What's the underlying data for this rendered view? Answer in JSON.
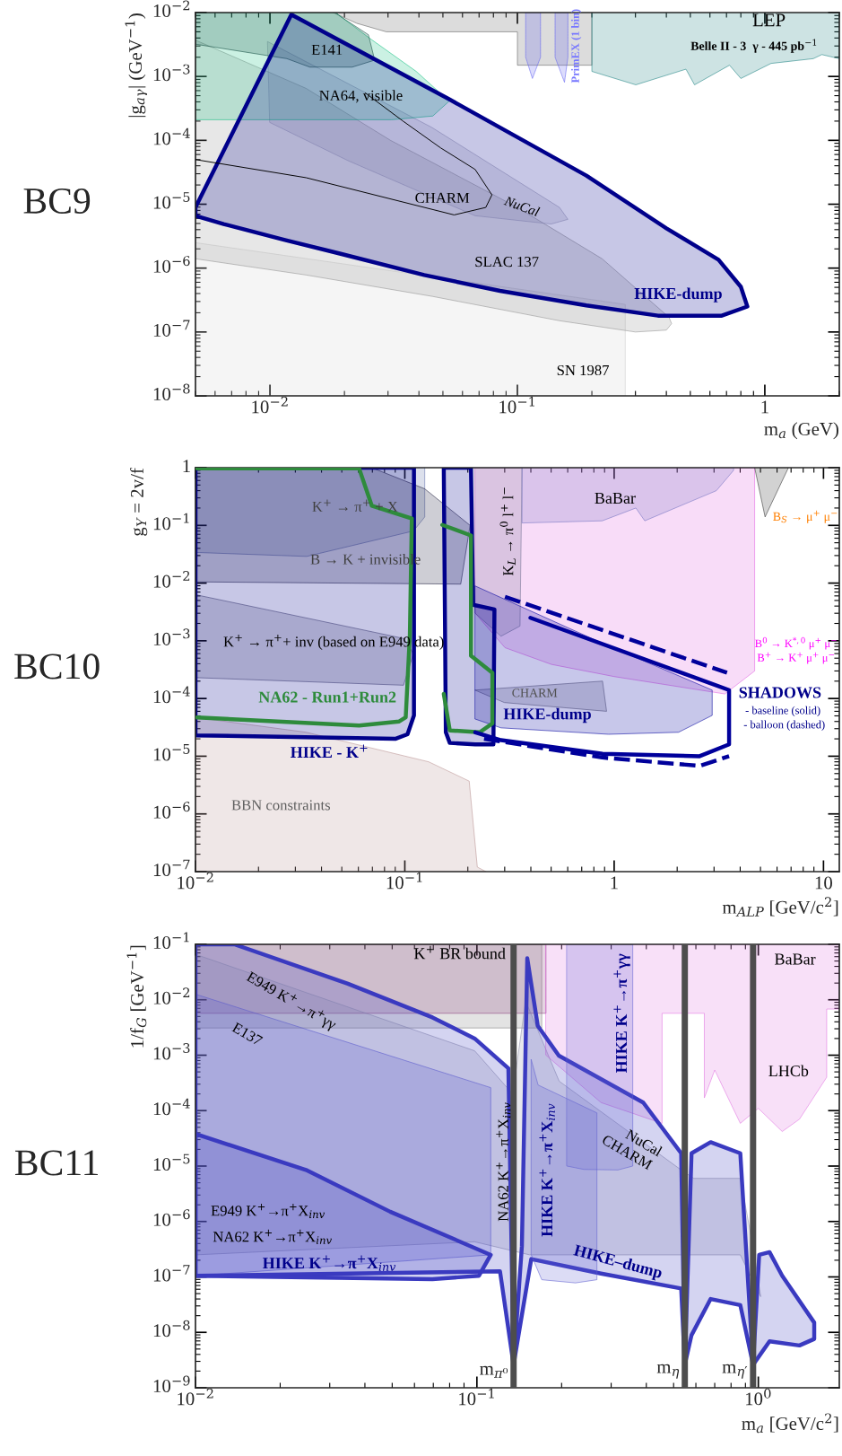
{
  "chart_data": [
    {
      "type": "area",
      "title": "BC9",
      "xlabel": "m$_{a}$ (GeV)",
      "ylabel": "|g$_{aγ}$| (GeV$^{−1}$)",
      "log": "xy",
      "xlim": [
        0.005,
        2.0
      ],
      "ylim": [
        1e-08,
        0.01
      ],
      "xticks": [
        {
          "value": 0.01,
          "label": "10$^{−2}$"
        },
        {
          "value": 0.1,
          "label": "10$^{−1}$"
        },
        1
      ],
      "yticks": [
        {
          "value": 1e-08,
          "label": "10$^{−8}$"
        },
        {
          "value": 1e-07,
          "label": "10$^{−7}$"
        },
        {
          "value": 1e-06,
          "label": "10$^{−6}$"
        },
        {
          "value": 1e-05,
          "label": "10$^{−5}$"
        },
        {
          "value": 0.0001,
          "label": "10$^{−4}$"
        },
        {
          "value": 0.001,
          "label": "10$^{−3}$"
        },
        {
          "value": 0.01,
          "label": "10$^{−2}$"
        }
      ],
      "series": [
        {
          "color": "#d0d0d0",
          "x": [
            0.005,
            0.273,
            0.273,
            0.005
          ],
          "values": [
            2.5e-06,
            2.7e-07,
            1e-08,
            1e-08
          ]
        },
        {
          "color": "#909090",
          "x": [
            0.005,
            0.014,
            0.0307,
            0.1,
            0.22,
            0.41,
            0.42,
            0.4,
            0.3,
            0.148,
            0.0455,
            0.014,
            0.005
          ],
          "values": [
            0.0037,
            0.00065,
            0.0001,
            8.9e-06,
            1.4e-06,
            1.7e-07,
            1.35e-07,
            1.07e-07,
            1e-07,
            1.5e-07,
            3.6e-07,
            7.8e-07,
            1.4e-06
          ]
        },
        {
          "color": "#a0a0b4",
          "x": [
            0.0098,
            0.045,
            0.148,
            0.16,
            0.137,
            0.0675,
            0.0207,
            0.01
          ],
          "values": [
            0.0035,
            0.00016,
            8.9e-06,
            5.8e-06,
            4.9e-06,
            6.6e-06,
            4.8e-05,
            0.00019
          ]
        },
        {
          "color": "#606060",
          "x": [
            0.018,
            0.0224,
            0.0295,
            0.1,
            0.1,
            0.2,
            0.2
          ],
          "values": [
            0.01,
            0.0068,
            0.005,
            0.005,
            0.0015,
            0.0015,
            0.01
          ]
        },
        {
          "color": "#1a8080",
          "x": [
            0.2,
            0.2,
            0.301,
            0.48,
            0.52,
            0.72,
            0.8,
            1.06,
            1.57,
            1.7,
            2.0,
            2.0
          ],
          "values": [
            0.01,
            0.0012,
            0.00074,
            0.0013,
            0.00074,
            0.0015,
            0.00093,
            0.0016,
            0.0019,
            0.0022,
            0.0019,
            0.01
          ]
        },
        {
          "color": "#6060f0",
          "line_style": "dashed",
          "x": [
            0.108,
            0.108,
            0.115,
            0.124,
            0.124
          ],
          "values": [
            0.01,
            0.002,
            0.00093,
            0.002,
            0.01
          ]
        },
        {
          "color": "#6060f0",
          "line_style": "dashed",
          "x": [
            0.142,
            0.142,
            0.155,
            0.16,
            0.16
          ],
          "values": [
            0.01,
            0.002,
            0.00081,
            0.002,
            0.01
          ]
        },
        {
          "color": "#10c080",
          "x": [
            0.005,
            0.0184,
            0.0252,
            0.039,
            0.053,
            0.0455,
            0.031,
            0.005
          ],
          "values": [
            0.01,
            0.01,
            0.004,
            0.0012,
            0.00041,
            0.00024,
            0.00021,
            0.00021
          ]
        },
        {
          "color": "#104a40",
          "x": [
            0.005,
            0.005,
            0.0117,
            0.0145,
            0.0215,
            0.0265,
            0.025,
            0.019,
            0.0185
          ],
          "values": [
            0.01,
            0.0032,
            0.0019,
            0.0014,
            0.0014,
            0.0018,
            0.0045,
            0.009,
            0.01
          ]
        },
        {
          "type": "line",
          "color": "#000000",
          "x": [
            0.005,
            0.014,
            0.0555,
            0.0745,
            0.0789,
            0.0675,
            0.049,
            0.0345,
            0.0243
          ],
          "values": [
            5e-05,
            2.6e-05,
            6.8e-06,
            8.9e-06,
            1.4e-05,
            3.5e-05,
            7.6e-05,
            0.0002,
            0.00055
          ]
        },
        {
          "color": "#00008b",
          "x": [
            0.005,
            0.0122,
            0.053,
            0.19,
            0.4,
            0.65,
            0.8,
            0.85,
            0.67,
            0.37,
            0.19,
            0.085,
            0.042,
            0.019,
            0.0115,
            0.0065,
            0.005
          ],
          "values": [
            8.9e-06,
            0.0093,
            0.00044,
            2.8e-05,
            4.2e-06,
            1.35e-06,
            5.1e-07,
            2.5e-07,
            1.8e-07,
            1.8e-07,
            2.6e-07,
            4.4e-07,
            7.8e-07,
            1.7e-06,
            2.75e-06,
            4.9e-06,
            6.6e-06
          ]
        }
      ],
      "annotations": [
        "LEP",
        "Belle II - 3  γ - 445 pb$^{−1}$",
        "PrimEX (1 bin)",
        "E141",
        "NA64, visible",
        "CHARM",
        "NuCal",
        "SLAC 137",
        "HIKE-dump",
        "SN 1987"
      ]
    },
    {
      "type": "area",
      "title": "BC10",
      "xlabel": "m$_{ALP}$ [GeV/c$^{2}$]",
      "ylabel": "g$_{Y}$ = 2v/f",
      "log": "xy",
      "xlim": [
        0.01,
        11.9
      ],
      "ylim": [
        1e-07,
        1
      ],
      "xticks": [
        {
          "value": 0.01,
          "label": "10$^{−2}$"
        },
        {
          "value": 0.1,
          "label": "10$^{−1}$"
        },
        1,
        10
      ],
      "yticks": [
        {
          "value": 1e-07,
          "label": "10$^{−7}$"
        },
        {
          "value": 1e-06,
          "label": "10$^{−6}$"
        },
        {
          "value": 1e-05,
          "label": "10$^{−5}$"
        },
        {
          "value": 0.0001,
          "label": "10$^{−4}$"
        },
        {
          "value": 0.001,
          "label": "10$^{−3}$"
        },
        {
          "value": 0.01,
          "label": "10$^{−2}$"
        },
        {
          "value": 0.1,
          "label": "10$^{−1}$"
        },
        1
      ],
      "series": [
        {
          "color": "#b89090",
          "x": [
            0.01,
            0.01,
            0.0338,
            0.13,
            0.203,
            0.222,
            0.244
          ],
          "values": [
            1e-07,
            4.7e-05,
            2.6e-05,
            8e-06,
            3.7e-06,
            1.2e-07,
            1e-07
          ]
        },
        {
          "color": "#6070a8",
          "x": [
            0.01,
            0.01,
            0.034,
            0.11,
            0.1245,
            0.1245
          ],
          "values": [
            1,
            0.034,
            0.029,
            0.08,
            0.14,
            1
          ]
        },
        {
          "color": "#202040",
          "x": [
            0.01,
            0.01,
            0.185,
            0.205,
            0.1245,
            0.0695
          ],
          "values": [
            1,
            0.0105,
            0.0096,
            0.1,
            0.43,
            1
          ]
        },
        {
          "color": "#505070",
          "x": [
            0.01,
            0.0986,
            0.11,
            0.0986,
            0.01
          ],
          "values": [
            0.0063,
            0.0011,
            0.0006,
            0.00017,
            0.00023
          ]
        },
        {
          "color": "#e060e0",
          "x": [
            0.217,
            4.69,
            4.69,
            3.38,
            1.0,
            0.502,
            0.301,
            0.217
          ],
          "values": [
            1,
            1,
            0.0003,
            0.00012,
            0.00024,
            0.00039,
            0.00076,
            0.003
          ]
        },
        {
          "color": "#707090",
          "x": [
            0.207,
            0.363,
            0.355,
            0.288,
            0.217
          ],
          "values": [
            1,
            1,
            0.0018,
            0.0012,
            0.003
          ]
        },
        {
          "color": "#7070c0",
          "x": [
            0.363,
            0.363,
            0.877,
            1.27,
            1.4,
            3.08,
            3.72,
            3.72
          ],
          "values": [
            1,
            0.11,
            0.12,
            0.2,
            0.12,
            0.4,
            0.9,
            1
          ]
        },
        {
          "color": "#303030",
          "x": [
            4.69,
            5.26,
            6.8
          ],
          "values": [
            1,
            0.14,
            1
          ]
        },
        {
          "color": "#606070",
          "x": [
            0.217,
            0.88,
            0.92,
            0.3
          ],
          "values": [
            0.00014,
            0.0002,
            6e-05,
            8.5e-05
          ]
        },
        {
          "color": "#0000a0",
          "x": [
            0.217,
            0.877,
            2.94,
            2.94,
            2.03,
            0.94,
            0.288,
            0.217
          ],
          "values": [
            0.0089,
            0.00091,
            0.00014,
            5.1e-05,
            2.6e-05,
            2.4e-05,
            3.1e-05,
            4.4e-05
          ]
        },
        {
          "color": "#00008b",
          "x": [
            0.01,
            0.1106,
            0.1106,
            0.103,
            0.09,
            0.01
          ],
          "values": [
            1,
            1,
            5.1e-05,
            2.4e-05,
            2e-05,
            2.3e-05
          ]
        },
        {
          "color": "#00008b",
          "x": [
            0.1535,
            0.207,
            0.212,
            0.268,
            0.265,
            0.217,
            0.164,
            0.157
          ],
          "values": [
            1,
            1,
            0.0042,
            0.0035,
            1.6e-05,
            1.6e-05,
            1.7e-05,
            2.6e-05
          ]
        },
        {
          "type": "line",
          "color": "#2e8b3c",
          "x": [
            0.0102,
            0.0605,
            0.0695,
            0.108,
            0.1057,
            0.101,
            0.094,
            0.0605,
            0.0102
          ],
          "values": [
            0.97,
            0.97,
            0.22,
            0.132,
            0.00126,
            4.7e-05,
            4e-05,
            3.4e-05,
            4.7e-05
          ]
        },
        {
          "type": "line",
          "color": "#2e8b3c",
          "x": [
            0.151,
            0.207,
            0.207,
            0.262,
            0.262,
            0.228,
            0.164,
            0.1535
          ],
          "values": [
            0.102,
            0.067,
            0.00055,
            0.00028,
            3.7e-05,
            2.6e-05,
            2.8e-05,
            0.00012
          ]
        },
        {
          "type": "line",
          "color": "#00009b",
          "x": [
            0.398,
            3.54,
            3.54,
            2.56,
            0.88,
            0.288,
            0.217
          ],
          "values": [
            0.0025,
            0.00014,
            1.6e-05,
            1e-05,
            1.1e-05,
            1.9e-05,
            2.6e-05
          ]
        },
        {
          "type": "line",
          "color": "#00009b",
          "line_style": "dashed",
          "x": [
            0.301,
            3.46
          ],
          "values": [
            0.0058,
            0.00028
          ]
        },
        {
          "type": "line",
          "color": "#00009b",
          "line_style": "dashed",
          "x": [
            0.239,
            0.877,
            2.56,
            3.54
          ],
          "values": [
            2e-05,
            9.5e-06,
            6.8e-06,
            1e-05
          ]
        }
      ],
      "annotations": [
        "K$^{+}$ → π$^{+}$ + X",
        "B → K + invisible",
        "K$^{+}$ → π$^{+}$+ inv (based on E949 data)",
        "NA62 - Run1+Run2",
        "HIKE - K$^{+}$",
        "BBN constraints",
        "BaBar",
        "K$_{L}$ → π$^{0}$ l$^{+}$ l$^{−}$",
        "B$_{S}$ → μ$^{+}$ μ$^{−}$",
        "B$^{0}$ → K$^{*,0}$ μ$^{+}$ μ$^{−}$",
        "B$^{+}$ → K$^{+}$ μ$^{+}$ μ$^{−}$",
        "CHARM",
        "HIKE-dump",
        "SHADOWS",
        "- baseline (solid)",
        "- balloon (dashed)"
      ]
    },
    {
      "type": "area",
      "title": "BC11",
      "xlabel": "m$_{a}$ [GeV/c$^{2}$]",
      "ylabel": "1/f$_{G}$ [GeV$^{−1}$]",
      "log": "xy",
      "xlim": [
        0.01,
        1.94
      ],
      "ylim": [
        1e-09,
        0.1
      ],
      "xticks": [
        {
          "value": 0.01,
          "label": "10$^{−2}$"
        },
        {
          "value": 0.1,
          "label": "10$^{−1}$"
        },
        {
          "value": 1,
          "label": "10$^{0}$"
        }
      ],
      "yticks": [
        {
          "value": 1e-09,
          "label": "10$^{−9}$"
        },
        {
          "value": 1e-08,
          "label": "10$^{−8}$"
        },
        {
          "value": 1e-07,
          "label": "10$^{−7}$"
        },
        {
          "value": 1e-06,
          "label": "10$^{−6}$"
        },
        {
          "value": 1e-05,
          "label": "10$^{−5}$"
        },
        {
          "value": 0.0001,
          "label": "10$^{−4}$"
        },
        {
          "value": 0.001,
          "label": "10$^{−3}$"
        },
        {
          "value": 0.01,
          "label": "10$^{−2}$"
        },
        {
          "value": 0.1,
          "label": "10$^{−1}$"
        }
      ],
      "series": [
        {
          "color": "#808080",
          "x": [
            0.01,
            0.17,
            0.17,
            0.01
          ],
          "values": [
            0.1,
            0.1,
            0.0031,
            0.0031
          ]
        },
        {
          "color": "#8a3a7a",
          "x": [
            0.01,
            0.176,
            0.176,
            0.01
          ],
          "values": [
            0.1,
            0.1,
            0.0057,
            0.0057
          ]
        },
        {
          "color": "#9090a8",
          "x": [
            0.01,
            0.0982,
            0.134,
            0.149,
            0.196,
            0.532,
            0.59,
            0.863,
            0.957,
            1.02,
            0.863,
            0.57,
            0.154,
            0.0982,
            0.01
          ],
          "values": [
            0.066,
            0.0012,
            0.0002,
            0.0095,
            0.00034,
            8.5e-06,
            6e-06,
            6e-06,
            3.6e-07,
            4.4e-08,
            2.5e-07,
            2.5e-07,
            2.5e-07,
            4.3e-07,
            2.5e-07
          ]
        },
        {
          "color": "#e070e0",
          "x": [
            0.176,
            1.94,
            1.94,
            1.75,
            1.75,
            1.4,
            1.216,
            1.0,
            0.863,
            0.7,
            0.643,
            0.643,
            0.455,
            0.455,
            0.276,
            0.176
          ],
          "values": [
            0.1,
            0.1,
            0.0068,
            0.0068,
            0.0004,
            7e-05,
            4.2e-05,
            0.00011,
            5.9e-05,
            0.00054,
            0.00017,
            0.0057,
            0.0057,
            5.9e-05,
            0.00014,
            0.001
          ]
        },
        {
          "color": "#6060d0",
          "x": [
            0.01,
            0.112,
            0.112,
            0.01
          ],
          "values": [
            0.0126,
            0.00026,
            2.5e-07,
            1.05e-07
          ]
        },
        {
          "color": "#3a3ac0",
          "x": [
            0.01,
            0.01374,
            0.0348,
            0.0695,
            0.0982,
            0.1294,
            0.135,
            0.1445,
            0.151,
            0.1645,
            0.1955,
            0.39,
            0.532,
            0.548,
            0.579,
            0.677,
            0.863,
            0.958,
            1.007,
            1.096,
            1.216,
            1.58,
            1.58,
            1.4,
            1.096,
            0.958,
            0.863,
            0.677,
            0.579,
            0.548,
            0.532,
            0.276,
            0.156,
            0.135,
            0.1208,
            0.01
          ],
          "values": [
            0.1,
            0.1,
            0.0195,
            0.0048,
            0.002,
            0.00058,
            2.6e-09,
            3.6e-07,
            0.056,
            0.0034,
            0.00098,
            0.00014,
            1.7e-05,
            2.6e-09,
            1.7e-05,
            2.7e-05,
            1.7e-05,
            2.6e-09,
            2.5e-07,
            2.8e-07,
            1.05e-07,
            1.5e-08,
            7.6e-09,
            5.8e-09,
            6.9e-09,
            2.6e-09,
            3.1e-08,
            4e-08,
            8.9e-09,
            2.6e-09,
            6.2e-08,
            1.15e-07,
            2.1e-07,
            2.6e-09,
            1.26e-07,
            1.05e-07
          ]
        },
        {
          "color": "#3a3ac0",
          "x": [
            0.01,
            0.0247,
            0.0492,
            0.112,
            0.1017,
            0.0695,
            0.01
          ],
          "values": [
            3.8e-05,
            8.5e-06,
            1.5e-06,
            2.5e-07,
            1.05e-07,
            9.1e-08,
            1.05e-07
          ]
        },
        {
          "color": "#6060d0",
          "x": [
            0.156,
            0.165,
            0.267,
            0.267,
            0.224,
            0.17,
            0.156
          ],
          "values": [
            0.00083,
            0.00029,
            9.1e-05,
            8.9e-08,
            7.8e-08,
            8.9e-08,
            2.5e-07
          ]
        },
        {
          "color": "#6060d0",
          "x": [
            0.209,
            0.358,
            0.358,
            0.317,
            0.24,
            0.209
          ],
          "values": [
            0.1,
            0.1,
            1e-05,
            8.5e-06,
            8.7e-06,
            1e-05
          ]
        }
      ],
      "ref_lines": [
        {
          "axis": "x",
          "value": 0.135,
          "label": "m$_{π⁰}$",
          "color": "#4d4d4d"
        },
        {
          "axis": "x",
          "value": 0.548,
          "label": "m$_{η}$",
          "color": "#4d4d4d"
        },
        {
          "axis": "x",
          "value": 0.958,
          "label": "m$_{η′}$",
          "color": "#4d4d4d"
        }
      ],
      "annotations": [
        "K$^{+}$ BR bound",
        "BaBar",
        "LHCb",
        "E949 K$^{+}$→π$^{+}$γγ",
        "E137",
        "NA62 K$^{+}$→π$^{+}$X$_{inv}$",
        "HIKE K$^{+}$→π$^{+}$X$_{inv}$",
        "HIKE K$^{+}$→π$^{+}$γγ",
        "NuCal",
        "CHARM",
        "HIKE–dump",
        "E949 K$^{+}$→π$^{+}$X$_{inv}$",
        "NA62 K$^{+}$→π$^{+}$X$_{inv}$",
        "HIKE K$^{+}$→π$^{+}$X$_{inv}$"
      ]
    }
  ]
}
